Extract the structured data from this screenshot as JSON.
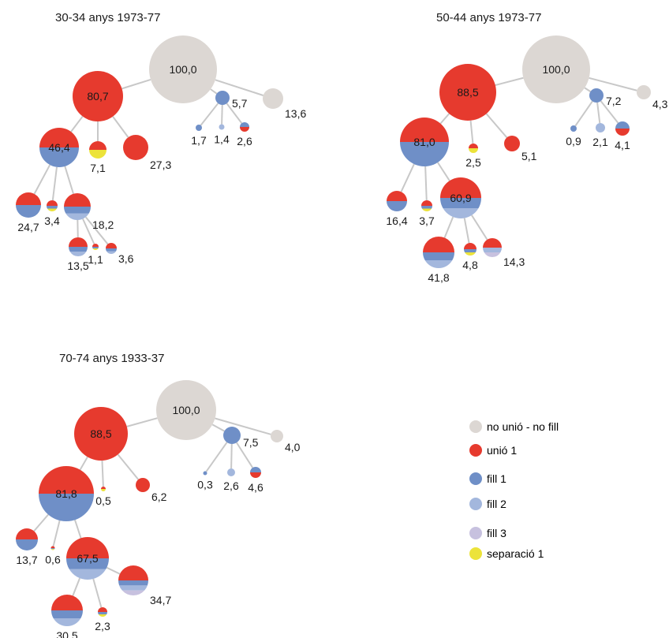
{
  "colors": {
    "no_union": "#dcd7d3",
    "union1": "#e63a2e",
    "child1": "#6f8fc7",
    "child2": "#a3b7dd",
    "child3": "#c7c1df",
    "separation1": "#ece33a",
    "line": "#c8c8c8",
    "text": "#1a1a1a"
  },
  "panels": [
    {
      "title": "30-34 anys 1973-77",
      "nodes": [
        {
          "id": "root",
          "value": "100,0",
          "label": "inside",
          "colors": [
            "no_union"
          ]
        },
        {
          "id": "u1",
          "value": "80,7",
          "label": "inside",
          "colors": [
            "union1"
          ]
        },
        {
          "id": "nu_f1",
          "value": "5,7",
          "label": "right",
          "colors": [
            "child1"
          ]
        },
        {
          "id": "nu",
          "value": "13,6",
          "label": "right-below",
          "colors": [
            "no_union"
          ]
        },
        {
          "id": "nu_f1_a",
          "value": "1,7",
          "label": "below",
          "colors": [
            "child1"
          ]
        },
        {
          "id": "nu_f1_b",
          "value": "1,4",
          "label": "below",
          "colors": [
            "child2"
          ]
        },
        {
          "id": "nu_f1_c",
          "value": "2,6",
          "label": "below",
          "colors": [
            "child1",
            "union1"
          ]
        },
        {
          "id": "u1_f1",
          "value": "46,4",
          "label": "inside",
          "colors": [
            "union1",
            "child1"
          ]
        },
        {
          "id": "u1_sep",
          "value": "7,1",
          "label": "below",
          "colors": [
            "union1",
            "separation1"
          ]
        },
        {
          "id": "u1_u",
          "value": "27,3",
          "label": "right-below",
          "colors": [
            "union1"
          ]
        },
        {
          "id": "f1_a",
          "value": "24,7",
          "label": "below",
          "colors": [
            "union1",
            "child1"
          ]
        },
        {
          "id": "f1_b",
          "value": "3,4",
          "label": "below",
          "colors": [
            "union1",
            "child1",
            "separation1"
          ]
        },
        {
          "id": "f1_f2",
          "value": "18,2",
          "label": "right-below",
          "colors": [
            "union1",
            "child1",
            "child2"
          ]
        },
        {
          "id": "f2_a",
          "value": "13,5",
          "label": "below",
          "colors": [
            "union1",
            "child1",
            "child2"
          ]
        },
        {
          "id": "f2_b",
          "value": "1,1",
          "label": "below",
          "colors": [
            "union1",
            "child1",
            "separation1"
          ]
        },
        {
          "id": "f2_c",
          "value": "3,6",
          "label": "right-below",
          "colors": [
            "union1",
            "child1",
            "child2"
          ]
        }
      ]
    },
    {
      "title": "50-44 anys 1973-77",
      "nodes": [
        {
          "id": "root",
          "value": "100,0",
          "label": "inside",
          "colors": [
            "no_union"
          ]
        },
        {
          "id": "u1",
          "value": "88,5",
          "label": "inside",
          "colors": [
            "union1"
          ]
        },
        {
          "id": "nu_f1",
          "value": "7,2",
          "label": "right",
          "colors": [
            "child1"
          ]
        },
        {
          "id": "nu",
          "value": "4,3",
          "label": "right-below",
          "colors": [
            "no_union"
          ]
        },
        {
          "id": "nu_f1_a",
          "value": "0,9",
          "label": "below",
          "colors": [
            "child1"
          ]
        },
        {
          "id": "nu_f1_b",
          "value": "2,1",
          "label": "below",
          "colors": [
            "child2"
          ]
        },
        {
          "id": "nu_f1_c",
          "value": "4,1",
          "label": "below",
          "colors": [
            "child1",
            "union1"
          ]
        },
        {
          "id": "u1_f1",
          "value": "81,0",
          "label": "inside",
          "colors": [
            "union1",
            "child1"
          ]
        },
        {
          "id": "u1_sep",
          "value": "2,5",
          "label": "below",
          "colors": [
            "union1",
            "separation1"
          ]
        },
        {
          "id": "u1_u",
          "value": "5,1",
          "label": "right-below",
          "colors": [
            "union1"
          ]
        },
        {
          "id": "f1_a",
          "value": "16,4",
          "label": "below",
          "colors": [
            "union1",
            "child1"
          ]
        },
        {
          "id": "f1_b",
          "value": "3,7",
          "label": "below",
          "colors": [
            "union1",
            "child1",
            "separation1"
          ]
        },
        {
          "id": "f1_f2",
          "value": "60,9",
          "label": "inside",
          "colors": [
            "union1",
            "child1",
            "child2"
          ]
        },
        {
          "id": "f2_a",
          "value": "41,8",
          "label": "below",
          "colors": [
            "union1",
            "child1",
            "child2"
          ]
        },
        {
          "id": "f2_b",
          "value": "4,8",
          "label": "below",
          "colors": [
            "union1",
            "child1",
            "separation1"
          ]
        },
        {
          "id": "f2_c",
          "value": "14,3",
          "label": "right-below",
          "colors": [
            "union1",
            "child2",
            "child3"
          ]
        }
      ]
    },
    {
      "title": "70-74 anys 1933-37",
      "nodes": [
        {
          "id": "root",
          "value": "100,0",
          "label": "inside",
          "colors": [
            "no_union"
          ]
        },
        {
          "id": "u1",
          "value": "88,5",
          "label": "inside",
          "colors": [
            "union1"
          ]
        },
        {
          "id": "nu_f1",
          "value": "7,5",
          "label": "right",
          "colors": [
            "child1"
          ]
        },
        {
          "id": "nu",
          "value": "4,0",
          "label": "right-below",
          "colors": [
            "no_union"
          ]
        },
        {
          "id": "nu_f1_a",
          "value": "0,3",
          "label": "below",
          "colors": [
            "child1"
          ]
        },
        {
          "id": "nu_f1_b",
          "value": "2,6",
          "label": "below",
          "colors": [
            "child2"
          ]
        },
        {
          "id": "nu_f1_c",
          "value": "4,6",
          "label": "below",
          "colors": [
            "child1",
            "union1"
          ]
        },
        {
          "id": "u1_f1",
          "value": "81,8",
          "label": "inside",
          "colors": [
            "union1",
            "child1"
          ]
        },
        {
          "id": "u1_sep",
          "value": "0,5",
          "label": "below",
          "colors": [
            "union1",
            "separation1"
          ]
        },
        {
          "id": "u1_u",
          "value": "6,2",
          "label": "right-below",
          "colors": [
            "union1"
          ]
        },
        {
          "id": "f1_a",
          "value": "13,7",
          "label": "below",
          "colors": [
            "union1",
            "child1"
          ]
        },
        {
          "id": "f1_b",
          "value": "0,6",
          "label": "below",
          "colors": [
            "union1",
            "child1",
            "separation1"
          ]
        },
        {
          "id": "f1_f2",
          "value": "67,5",
          "label": "inside",
          "colors": [
            "union1",
            "child1",
            "child2"
          ]
        },
        {
          "id": "f2_a",
          "value": "30,5",
          "label": "below",
          "colors": [
            "union1",
            "child1",
            "child2"
          ]
        },
        {
          "id": "f2_b",
          "value": "2,3",
          "label": "below",
          "colors": [
            "union1",
            "child1",
            "separation1"
          ]
        },
        {
          "id": "f2_c",
          "value": "34,7",
          "label": "right-below",
          "colors": [
            "union1",
            "child1",
            "child2",
            "child3"
          ]
        }
      ]
    }
  ],
  "legend": [
    {
      "label": "no unió - no fill",
      "color_key": "no_union"
    },
    {
      "label": "unió 1",
      "color_key": "union1"
    },
    {
      "label": "fill 1",
      "color_key": "child1"
    },
    {
      "label": "fill 2",
      "color_key": "child2"
    },
    {
      "label": "fill 3",
      "color_key": "child3"
    },
    {
      "label": "separació 1",
      "color_key": "separation1"
    }
  ]
}
